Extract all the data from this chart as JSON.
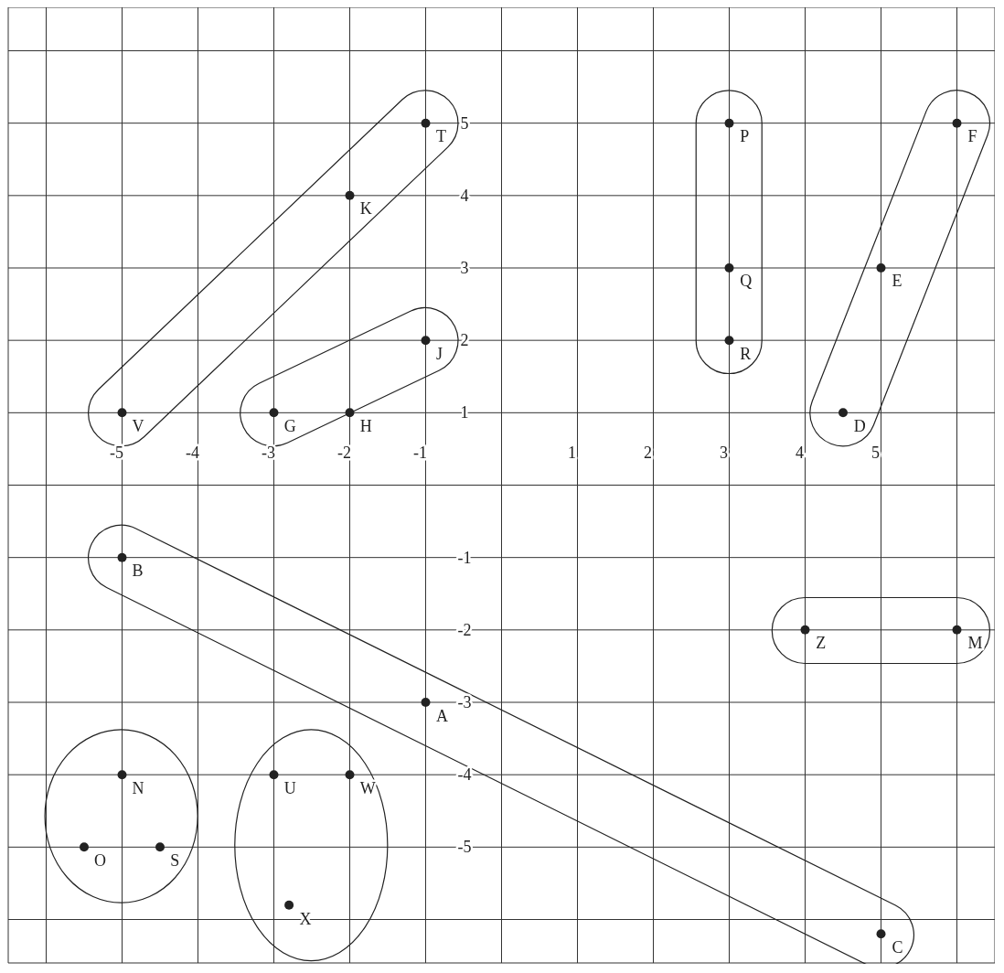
{
  "chart_data": {
    "type": "scatter",
    "xlim": [
      -6.5,
      6.5
    ],
    "ylim": [
      -6.6,
      6.6
    ],
    "xticks": [
      {
        "value": -6,
        "label": null
      },
      -5,
      -4,
      -3,
      -2,
      -1,
      {
        "value": 0,
        "label": null
      },
      1,
      2,
      3,
      4,
      5,
      {
        "value": 6,
        "label": null
      }
    ],
    "yticks": [
      {
        "value": -6,
        "label": null
      },
      -5,
      -4,
      -3,
      -2,
      -1,
      {
        "value": 0,
        "label": null
      },
      1,
      2,
      3,
      4,
      5,
      {
        "value": 6,
        "label": null
      }
    ],
    "grid": true,
    "marker": "circle",
    "series": [
      {
        "color": "#222222",
        "x": [
          -1,
          -2,
          -5,
          -3,
          -2,
          -1,
          3,
          3,
          3,
          6,
          5,
          4.5,
          -5,
          -1,
          5,
          4,
          6,
          -5,
          -5.5,
          -4.5,
          -3,
          -2,
          -2.8
        ],
        "values": [
          5,
          4,
          1,
          1,
          1,
          2,
          5,
          3,
          2,
          5,
          3,
          1,
          -1,
          -3,
          -6.2,
          -2,
          -2,
          -4,
          -5,
          -5,
          -4,
          -4,
          -5.8
        ]
      }
    ],
    "annotations": [
      {
        "text": "T",
        "x": -1,
        "y": 5
      },
      {
        "text": "K",
        "x": -2,
        "y": 4
      },
      {
        "text": "V",
        "x": -5,
        "y": 1
      },
      {
        "text": "G",
        "x": -3,
        "y": 1
      },
      {
        "text": "H",
        "x": -2,
        "y": 1
      },
      {
        "text": "J",
        "x": -1,
        "y": 2
      },
      {
        "text": "P",
        "x": 3,
        "y": 5
      },
      {
        "text": "Q",
        "x": 3,
        "y": 3
      },
      {
        "text": "R",
        "x": 3,
        "y": 2
      },
      {
        "text": "F",
        "x": 6,
        "y": 5
      },
      {
        "text": "E",
        "x": 5,
        "y": 3
      },
      {
        "text": "D",
        "x": 4.5,
        "y": 1
      },
      {
        "text": "B",
        "x": -5,
        "y": -1
      },
      {
        "text": "A",
        "x": -1,
        "y": -3
      },
      {
        "text": "C",
        "x": 5,
        "y": -6.2
      },
      {
        "text": "Z",
        "x": 4,
        "y": -2
      },
      {
        "text": "M",
        "x": 6,
        "y": -2
      },
      {
        "text": "N",
        "x": -5,
        "y": -4
      },
      {
        "text": "O",
        "x": -5.5,
        "y": -5
      },
      {
        "text": "S",
        "x": -4.5,
        "y": -5
      },
      {
        "text": "U",
        "x": -3,
        "y": -4
      },
      {
        "text": "W",
        "x": -2,
        "y": -4
      },
      {
        "text": "X",
        "x": -2.8,
        "y": -5.8
      }
    ]
  }
}
